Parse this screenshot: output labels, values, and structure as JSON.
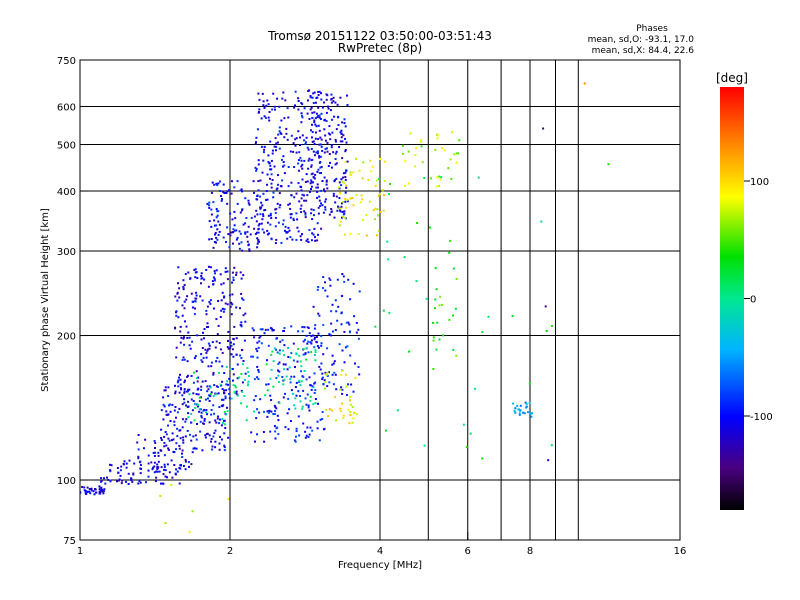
{
  "chart_data": {
    "type": "scatter",
    "title": "Tromsø 20151122 03:50:00-03:51:43",
    "subtitle": "RwPretec (8p)",
    "xlabel": "Frequency [MHz]",
    "ylabel": "Stationary phase Virtual Height [km]",
    "xscale": "log",
    "yscale": "log",
    "xlim": [
      1,
      16
    ],
    "ylim": [
      75,
      750
    ],
    "x_ticks": [
      1,
      2,
      4,
      6,
      8,
      16
    ],
    "x_tick_labels": [
      "1",
      "2",
      "4",
      "6",
      "8",
      "16"
    ],
    "y_ticks": [
      75,
      100,
      200,
      300,
      400,
      500,
      600,
      750
    ],
    "y_tick_labels": [
      "75",
      "100",
      "200",
      "300",
      "400",
      "500",
      "600",
      "750"
    ],
    "x_grid": [
      2,
      4,
      5,
      6,
      7,
      8,
      9,
      10
    ],
    "y_grid": [
      100,
      200,
      300,
      400,
      500,
      600
    ],
    "grid": true,
    "legend": {
      "heading": "Phases",
      "lines": [
        "mean, sd,O: -93.1, 17.0",
        "mean, sd,X:  84.4, 22.6"
      ]
    },
    "colorbar": {
      "unit": "[deg]",
      "range": [
        -180,
        180
      ],
      "ticks": [
        100,
        0,
        -100
      ],
      "tick_labels": [
        "100",
        "0",
        "-100"
      ]
    },
    "clusters": [
      {
        "fmin": 1.0,
        "fmax": 1.12,
        "hmin": 93,
        "hmax": 97,
        "phase": -110,
        "n": 40
      },
      {
        "fmin": 1.1,
        "fmax": 1.6,
        "hmin": 98,
        "hmax": 110,
        "phase": -110,
        "n": 90
      },
      {
        "fmin": 1.3,
        "fmax": 1.7,
        "hmin": 105,
        "hmax": 125,
        "phase": -105,
        "n": 50
      },
      {
        "fmin": 1.45,
        "fmax": 2.0,
        "hmin": 115,
        "hmax": 160,
        "phase": -105,
        "n": 170
      },
      {
        "fmin": 1.55,
        "fmax": 2.15,
        "hmin": 150,
        "hmax": 280,
        "phase": -108,
        "n": 260
      },
      {
        "fmin": 1.65,
        "fmax": 2.25,
        "hmin": 130,
        "hmax": 175,
        "phase": 0,
        "n": 50
      },
      {
        "fmin": 2.2,
        "fmax": 3.1,
        "hmin": 120,
        "hmax": 210,
        "phase": -95,
        "n": 200
      },
      {
        "fmin": 2.35,
        "fmax": 3.0,
        "hmin": 140,
        "hmax": 190,
        "phase": 0,
        "n": 55
      },
      {
        "fmin": 2.9,
        "fmax": 3.65,
        "hmin": 150,
        "hmax": 270,
        "phase": -95,
        "n": 90
      },
      {
        "fmin": 3.1,
        "fmax": 3.6,
        "hmin": 130,
        "hmax": 170,
        "phase": 90,
        "n": 35
      },
      {
        "fmin": 1.8,
        "fmax": 2.35,
        "hmin": 300,
        "hmax": 420,
        "phase": -105,
        "n": 130
      },
      {
        "fmin": 2.25,
        "fmax": 3.05,
        "hmin": 310,
        "hmax": 650,
        "phase": -105,
        "n": 300
      },
      {
        "fmin": 2.9,
        "fmax": 3.45,
        "hmin": 350,
        "hmax": 650,
        "phase": -110,
        "n": 200
      },
      {
        "fmin": 3.3,
        "fmax": 4.1,
        "hmin": 320,
        "hmax": 480,
        "phase": 90,
        "n": 60
      },
      {
        "fmin": 4.4,
        "fmax": 5.8,
        "hmin": 400,
        "hmax": 540,
        "phase": 70,
        "n": 35
      },
      {
        "fmin": 5.1,
        "fmax": 5.7,
        "hmin": 170,
        "hmax": 300,
        "phase": 40,
        "n": 22
      },
      {
        "fmin": 7.4,
        "fmax": 8.1,
        "hmin": 135,
        "hmax": 145,
        "phase": -50,
        "n": 25
      },
      {
        "fmin": 3.9,
        "fmax": 9.0,
        "hmin": 110,
        "hmax": 450,
        "phase": 20,
        "n": 35
      },
      {
        "fmin": 1.35,
        "fmax": 2.0,
        "hmin": 76,
        "hmax": 98,
        "phase": 90,
        "n": 6
      }
    ],
    "outliers": [
      {
        "x": 8.5,
        "y": 540,
        "phase": -150
      },
      {
        "x": 10.3,
        "y": 670,
        "phase": 130
      },
      {
        "x": 11.5,
        "y": 455,
        "phase": 40
      },
      {
        "x": 8.7,
        "y": 110,
        "phase": -100
      },
      {
        "x": 8.6,
        "y": 230,
        "phase": -150
      }
    ]
  }
}
